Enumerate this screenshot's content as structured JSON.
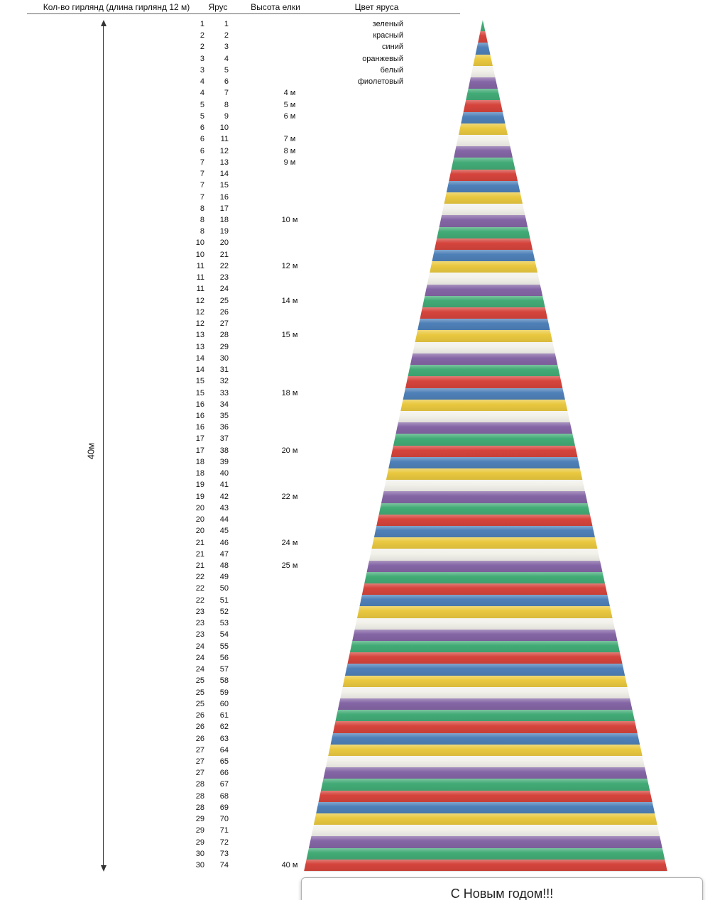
{
  "header": {
    "garlands": "Кол-во гирлянд (длина гирлянд 12 м)",
    "tier": "Ярус",
    "height": "Высота елки",
    "color": "Цвет яруса"
  },
  "legend": [
    {
      "label": "зеленый",
      "color": "#42ab76"
    },
    {
      "label": "красный",
      "color": "#d5443c"
    },
    {
      "label": "синий",
      "color": "#4e80b8"
    },
    {
      "label": "оранжевый",
      "color": "#e9c83f"
    },
    {
      "label": "белый",
      "color": "#f2f1ea"
    },
    {
      "label": "фиолетовый",
      "color": "#8465a5"
    }
  ],
  "axis": {
    "total_height": "40м"
  },
  "banner": {
    "text": "С Новым годом!!!"
  },
  "chart_data": {
    "type": "table",
    "columns": [
      "Кол-во гирлянд (длина гирлянд 12 м)",
      "Ярус",
      "Высота елки",
      "Цвет яруса"
    ],
    "tiers": 74,
    "color_cycle": [
      "зеленый",
      "красный",
      "синий",
      "оранжевый",
      "белый",
      "фиолетовый"
    ],
    "color_cycle_hex": [
      "#42ab76",
      "#d5443c",
      "#4e80b8",
      "#e9c83f",
      "#f2f1ea",
      "#8465a5"
    ],
    "garlands_per_tier": [
      1,
      2,
      2,
      3,
      3,
      4,
      4,
      5,
      5,
      6,
      6,
      6,
      7,
      7,
      7,
      7,
      8,
      8,
      8,
      10,
      10,
      11,
      11,
      11,
      12,
      12,
      12,
      13,
      13,
      14,
      14,
      15,
      15,
      16,
      16,
      16,
      17,
      17,
      18,
      18,
      19,
      19,
      20,
      20,
      20,
      21,
      21,
      21,
      22,
      22,
      22,
      23,
      23,
      23,
      24,
      24,
      24,
      25,
      25,
      25,
      26,
      26,
      26,
      27,
      27,
      27,
      28,
      28,
      28,
      29,
      29,
      29,
      30,
      30
    ],
    "height_labels": {
      "7": "4 м",
      "8": "5 м",
      "9": "6 м",
      "11": "7 м",
      "12": "8 м",
      "13": "9 м",
      "18": "10 м",
      "22": "12 м",
      "25": "14 м",
      "28": "15 м",
      "33": "18 м",
      "38": "20 м",
      "42": "22 м",
      "46": "24 м",
      "48": "25 м",
      "74": "40 м"
    }
  }
}
